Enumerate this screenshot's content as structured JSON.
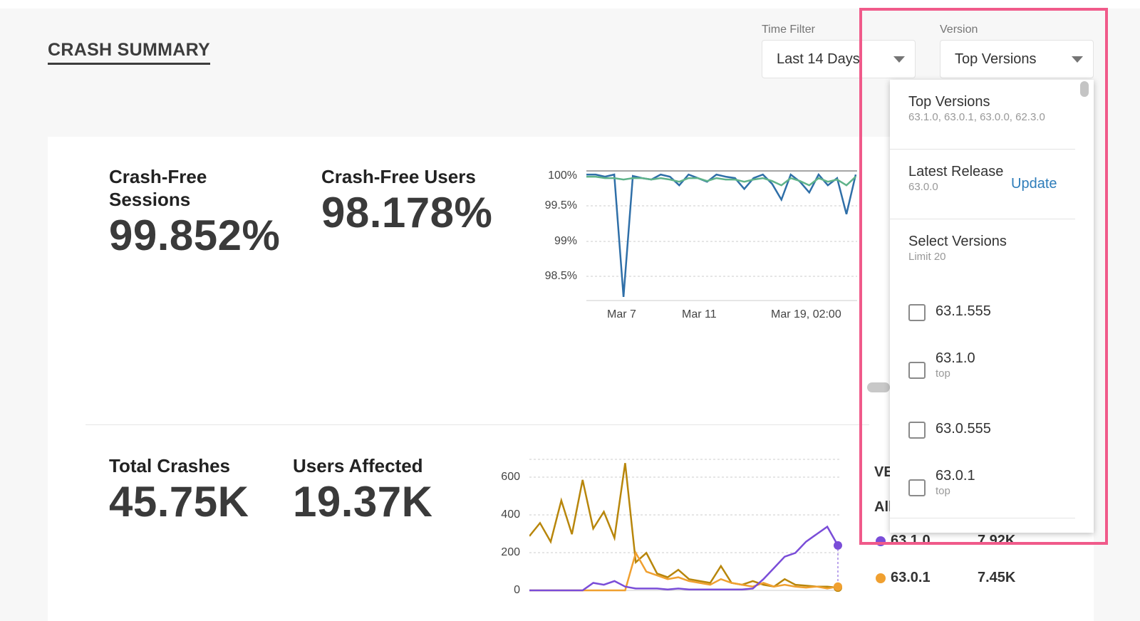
{
  "page_title": "CRASH SUMMARY",
  "filters": {
    "time_label": "Time Filter",
    "time_value": "Last 14 Days",
    "version_label": "Version",
    "version_value": "Top Versions"
  },
  "metrics": {
    "crash_free_sessions_label": "Crash-Free Sessions",
    "crash_free_sessions_value": "99.852%",
    "crash_free_users_label": "Crash-Free Users",
    "crash_free_users_value": "98.178%",
    "total_crashes_label": "Total Crashes",
    "total_crashes_value": "45.75K",
    "users_affected_label": "Users Affected",
    "users_affected_value": "19.37K"
  },
  "chart_data": [
    {
      "type": "line",
      "y_ticks": [
        "100%",
        "99.5%",
        "99%",
        "98.5%"
      ],
      "x_ticks": [
        "Mar 7",
        "Mar 11",
        "Mar 19, 02:00"
      ],
      "ylim": [
        98.2,
        100
      ],
      "series": [
        {
          "color": "#2f6fa8",
          "values": [
            99.95,
            99.95,
            99.92,
            99.95,
            98.25,
            99.93,
            99.9,
            99.88,
            99.95,
            99.92,
            99.8,
            99.95,
            99.9,
            99.85,
            99.95,
            99.92,
            99.9,
            99.75,
            99.9,
            99.95,
            99.82,
            99.6,
            99.95,
            99.85,
            99.7,
            99.95,
            99.8,
            99.9,
            99.4,
            99.95
          ]
        },
        {
          "color": "#5fb38a",
          "values": [
            99.92,
            99.92,
            99.9,
            99.9,
            99.88,
            99.9,
            99.9,
            99.88,
            99.9,
            99.88,
            99.85,
            99.9,
            99.9,
            99.86,
            99.9,
            99.88,
            99.88,
            99.85,
            99.88,
            99.9,
            99.86,
            99.8,
            99.9,
            99.86,
            99.8,
            99.9,
            99.85,
            99.88,
            99.8,
            99.92
          ]
        }
      ]
    },
    {
      "type": "line",
      "y_ticks": [
        "600",
        "400",
        "200",
        "0"
      ],
      "ylim": [
        0,
        700
      ],
      "series": [
        {
          "color": "#b8860b",
          "values": [
            290,
            360,
            260,
            480,
            300,
            590,
            330,
            420,
            280,
            680,
            150,
            200,
            90,
            70,
            110,
            60,
            50,
            40,
            130,
            40,
            30,
            50,
            30,
            20,
            60,
            30,
            25,
            20,
            20,
            15
          ]
        },
        {
          "color": "#f0a030",
          "values": [
            0,
            0,
            0,
            0,
            0,
            0,
            0,
            0,
            0,
            0,
            200,
            100,
            80,
            60,
            70,
            50,
            40,
            30,
            60,
            40,
            30,
            20,
            40,
            20,
            30,
            20,
            15,
            20,
            10,
            20
          ]
        },
        {
          "color": "#7a4dd8",
          "values": [
            0,
            0,
            0,
            0,
            0,
            0,
            40,
            30,
            50,
            20,
            10,
            10,
            10,
            5,
            10,
            5,
            5,
            5,
            5,
            5,
            5,
            10,
            60,
            120,
            180,
            200,
            260,
            300,
            340,
            240
          ]
        }
      ]
    }
  ],
  "dropdown": {
    "top_versions_title": "Top Versions",
    "top_versions_sub": "63.1.0, 63.0.1, 63.0.0, 62.3.0",
    "latest_release_title": "Latest Release",
    "latest_release_sub": "63.0.0",
    "update_label": "Update",
    "select_versions_title": "Select Versions",
    "select_versions_sub": "Limit 20",
    "items": [
      {
        "label": "63.1.555",
        "tag": ""
      },
      {
        "label": "63.1.0",
        "tag": "top"
      },
      {
        "label": "63.0.555",
        "tag": ""
      },
      {
        "label": "63.0.1",
        "tag": "top"
      }
    ]
  },
  "legend": {
    "version_header_partial": "VE",
    "all_partial": "All",
    "rows": [
      {
        "version": "63.1.0",
        "count": "7.92K",
        "color": "#7a4dd8"
      },
      {
        "version": "63.0.1",
        "count": "7.45K",
        "color": "#f0a030"
      }
    ]
  }
}
